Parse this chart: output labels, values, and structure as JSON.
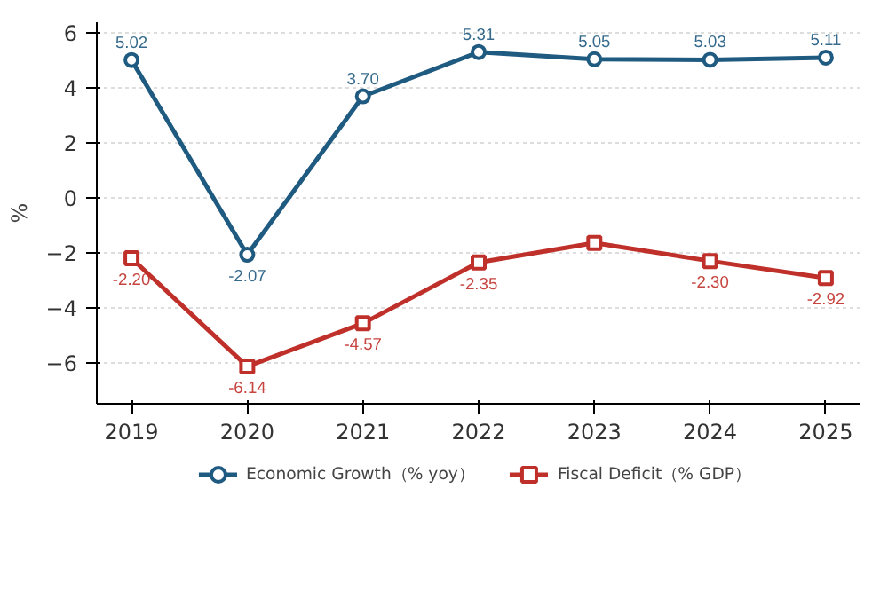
{
  "chart_data": {
    "type": "line",
    "ylabel": "%",
    "x": [
      2019,
      2020,
      2021,
      2022,
      2023,
      2024,
      2025
    ],
    "xlim": [
      2018.7,
      2025.3
    ],
    "xticks": [
      2019,
      2020,
      2021,
      2022,
      2023,
      2024,
      2025
    ],
    "ylim": [
      -7.5,
      6.4
    ],
    "yticks": [
      -6,
      -4,
      -2,
      0,
      2,
      4,
      6
    ],
    "series": [
      {
        "name": "Economic Growth（% yoy）",
        "color": "#1f5a80",
        "marker": "circle",
        "values": [
          5.02,
          -2.07,
          3.7,
          5.31,
          5.05,
          5.03,
          5.11
        ],
        "value_labels": [
          "5.02",
          "-2.07",
          "3.70",
          "5.31",
          "5.05",
          "5.03",
          "5.11"
        ]
      },
      {
        "name": "Fiscal Deficit（% GDP）",
        "color": "#c0302a",
        "marker": "square",
        "values": [
          -2.2,
          -6.14,
          -4.57,
          -2.35,
          -1.64,
          -2.3,
          -2.92
        ],
        "value_labels": [
          "-2.20",
          "-6.14",
          "-4.57",
          "-2.35",
          null,
          "-2.30",
          "-2.92"
        ]
      }
    ],
    "grid": "y",
    "legend": "bottom",
    "line_style": "solid"
  }
}
